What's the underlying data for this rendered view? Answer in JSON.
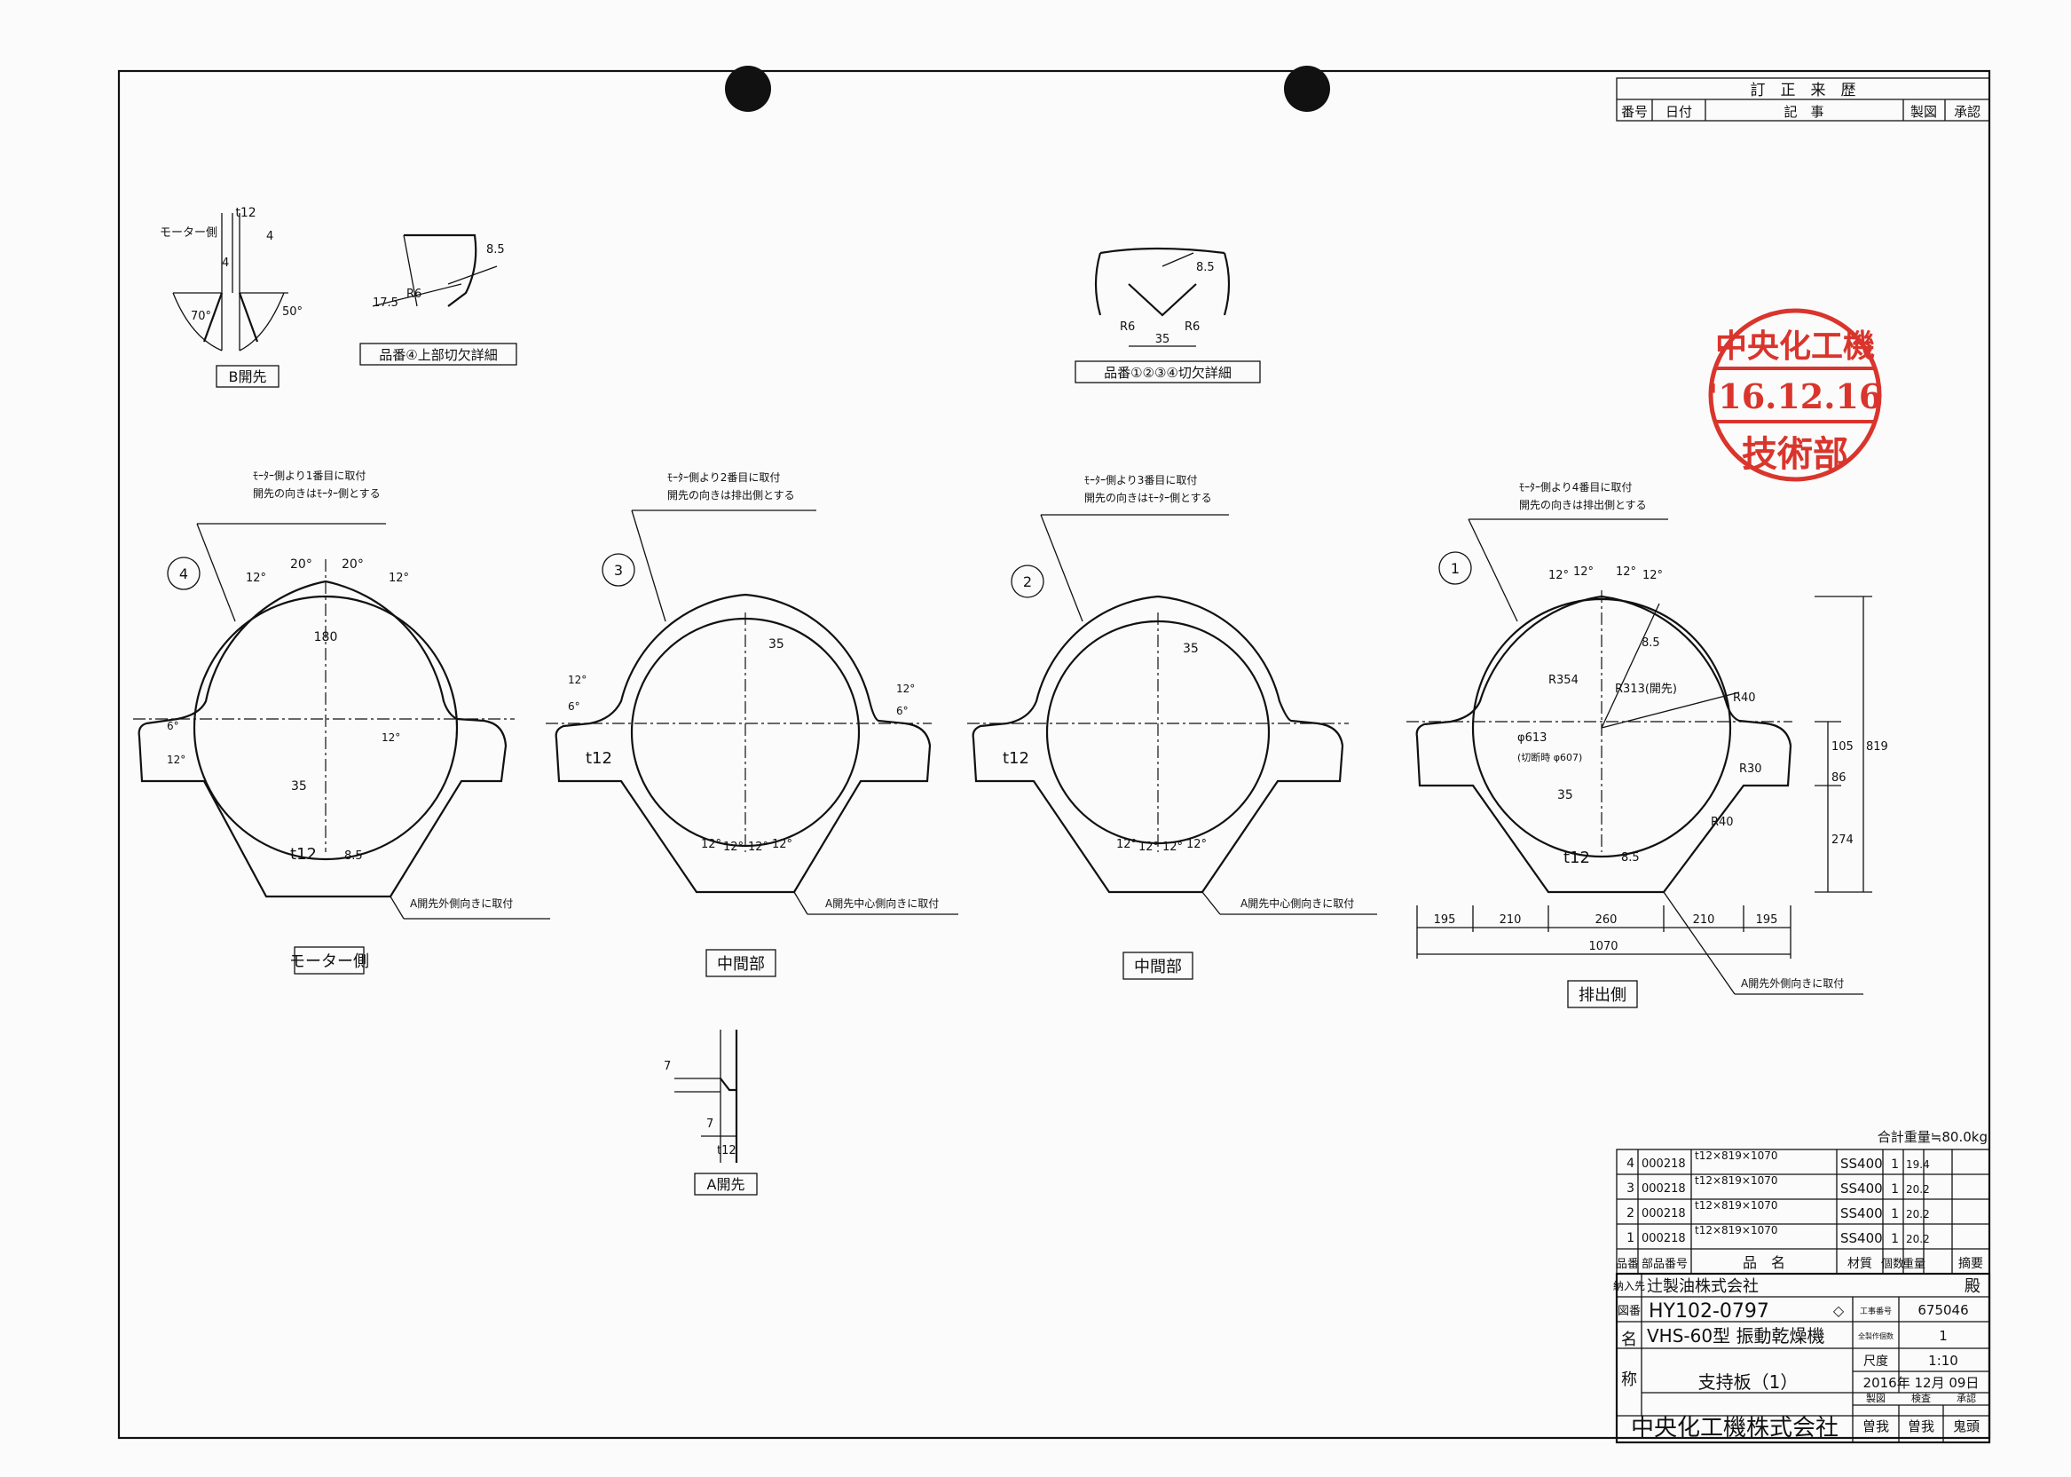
{
  "revision_block": {
    "title": "訂　正　来　歴",
    "headers": [
      "番号",
      "日付",
      "記　事",
      "製図",
      "承認"
    ]
  },
  "details": {
    "b_bevel": {
      "label": "B開先",
      "t": "t12",
      "motor_side": "モーター側",
      "dim_4a": "4",
      "dim_4b": "4",
      "angle_70": "70°",
      "angle_50": "50°"
    },
    "top_notch_4": {
      "label": "品番④上部切欠詳細",
      "r6": "R6",
      "d175": "17.5",
      "d85": "8.5"
    },
    "notch_1234": {
      "label": "品番①②③④切欠詳細",
      "r6a": "R6",
      "r6b": "R6",
      "d35": "35",
      "d85": "8.5"
    },
    "a_bevel": {
      "label": "A開先",
      "d7a": "7",
      "d7b": "7",
      "t": "t12"
    }
  },
  "plates": [
    {
      "id": "plate-4",
      "num": "4",
      "view": "モーター側",
      "note1": "ﾓｰﾀｰ側より1番目に取付",
      "note2": "開先の向きはﾓｰﾀｰ側とする",
      "a_note": "A開先外側向きに取付",
      "t": "t12",
      "d35": "35",
      "d85": "8.5",
      "d180": "180",
      "a20a": "20°",
      "a20b": "20°",
      "a12a": "12°",
      "a12b": "12°",
      "a12c": "12°",
      "a6": "6°",
      "a12d": "12°"
    },
    {
      "id": "plate-3",
      "num": "3",
      "view": "中間部",
      "note1": "ﾓｰﾀｰ側より2番目に取付",
      "note2": "開先の向きは排出側とする",
      "a_note": "A開先中心側向きに取付",
      "t": "t12",
      "d35": "35",
      "a6": "6°",
      "a12": "12°",
      "a12r": "12°",
      "a6r": "6°",
      "bottom": [
        "12°",
        "12°",
        "12°",
        "12°"
      ]
    },
    {
      "id": "plate-2",
      "num": "2",
      "view": "中間部",
      "note1": "ﾓｰﾀｰ側より3番目に取付",
      "note2": "開先の向きはﾓｰﾀｰ側とする",
      "a_note": "A開先中心側向きに取付",
      "t": "t12",
      "d35": "35",
      "bottom": [
        "12°",
        "12°",
        "12°",
        "12°"
      ]
    },
    {
      "id": "plate-1",
      "num": "1",
      "view": "排出側",
      "note1": "ﾓｰﾀｰ側より4番目に取付",
      "note2": "開先の向きは排出側とする",
      "a_note": "A開先外側向きに取付",
      "t": "t12",
      "d35": "35",
      "d85": "8.5",
      "top_angles": [
        "12°",
        "12°",
        "12°",
        "12°"
      ],
      "r354": "R354",
      "r313": "R313(開先)",
      "r40a": "R40",
      "r30": "R30",
      "r40b": "R40",
      "phi613": "φ613",
      "phi_cut": "(切断時 φ607)",
      "d85b": "8.5",
      "bottom_dims": [
        "195",
        "210",
        "260",
        "210",
        "195"
      ],
      "total": "1070",
      "right_dims": [
        "105",
        "86",
        "274"
      ],
      "height": "819"
    }
  ],
  "stamp": {
    "company": "中央化工機",
    "date": "'16.12.16",
    "dept": "技術部"
  },
  "parts_list": {
    "total_weight": "合計重量≒80.0kg",
    "rows": [
      {
        "no": "4",
        "code": "000218",
        "spec": "t12×819×1070",
        "material": "SS400",
        "qty": "1",
        "weight": "19.4"
      },
      {
        "no": "3",
        "code": "000218",
        "spec": "t12×819×1070",
        "material": "SS400",
        "qty": "1",
        "weight": "20.2"
      },
      {
        "no": "2",
        "code": "000218",
        "spec": "t12×819×1070",
        "material": "SS400",
        "qty": "1",
        "weight": "20.2"
      },
      {
        "no": "1",
        "code": "000218",
        "spec": "t12×819×1070",
        "material": "SS400",
        "qty": "1",
        "weight": "20.2"
      }
    ],
    "headers": {
      "no": "品番",
      "code": "部品番号",
      "name": "品　名",
      "material": "材質",
      "qty": "個数",
      "weight": "重量",
      "remarks": "摘要"
    }
  },
  "title_block": {
    "delivery_label": "納入先",
    "delivery": "辻製油株式会社",
    "honorific": "殿",
    "drawing_no_label": "図番",
    "drawing_no": "HY102-0797",
    "rev_mark": "◇",
    "work_no_label": "工事番号",
    "work_no": "675046",
    "qty_label": "全製作個数",
    "qty": "1",
    "name_label_1": "名",
    "name_label_2": "称",
    "product": "VHS-60型 振動乾燥機",
    "part": "支持板（1）",
    "scale_label": "尺度",
    "scale": "1:10",
    "date": "2016年 12月 09日",
    "company": "中央化工機株式会社",
    "sign_headers": [
      "製図",
      "検査",
      "承認"
    ],
    "signs": [
      "曽我",
      "曽我",
      "鬼頭"
    ]
  }
}
